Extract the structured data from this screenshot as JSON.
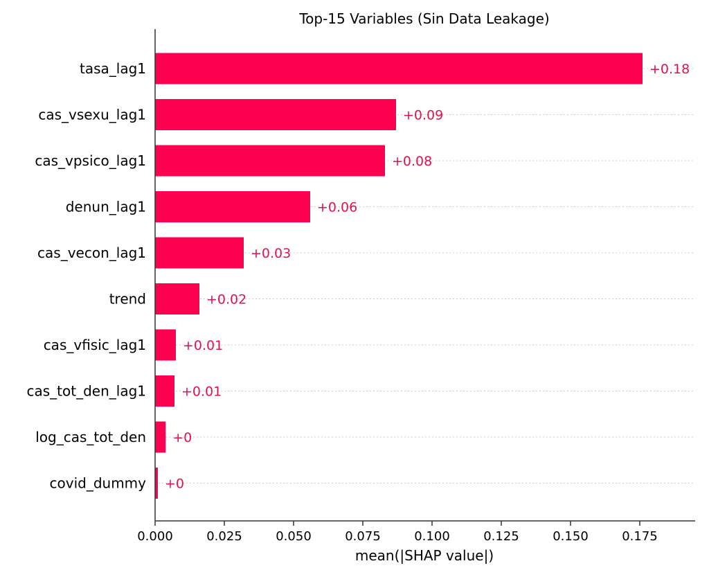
{
  "chart_data": {
    "type": "bar",
    "orientation": "horizontal",
    "title": "Top-15 Variables (Sin Data Leakage)",
    "xlabel": "mean(|SHAP value|)",
    "ylabel": "",
    "xlim": [
      0,
      0.195
    ],
    "x_ticks": [
      0.0,
      0.025,
      0.05,
      0.075,
      0.1,
      0.125,
      0.15,
      0.175
    ],
    "x_tick_labels": [
      "0.000",
      "0.025",
      "0.050",
      "0.075",
      "0.100",
      "0.125",
      "0.150",
      "0.175"
    ],
    "categories": [
      "tasa_lag1",
      "cas_vsexu_lag1",
      "cas_vpsico_lag1",
      "denun_lag1",
      "cas_vecon_lag1",
      "trend",
      "cas_vfisic_lag1",
      "cas_tot_den_lag1",
      "log_cas_tot_den",
      "covid_dummy"
    ],
    "values": [
      0.176,
      0.087,
      0.083,
      0.056,
      0.032,
      0.016,
      0.0075,
      0.007,
      0.0038,
      0.001
    ],
    "value_labels": [
      "+0.18",
      "+0.09",
      "+0.08",
      "+0.06",
      "+0.03",
      "+0.02",
      "+0.01",
      "+0.01",
      "+0",
      "+0"
    ],
    "grid": "horizontal dotted",
    "colors": {
      "bar": "#ff0051",
      "value_label": "#e0134f",
      "axis": "#333333",
      "text": "#000000",
      "grid": "#cccccc"
    }
  }
}
